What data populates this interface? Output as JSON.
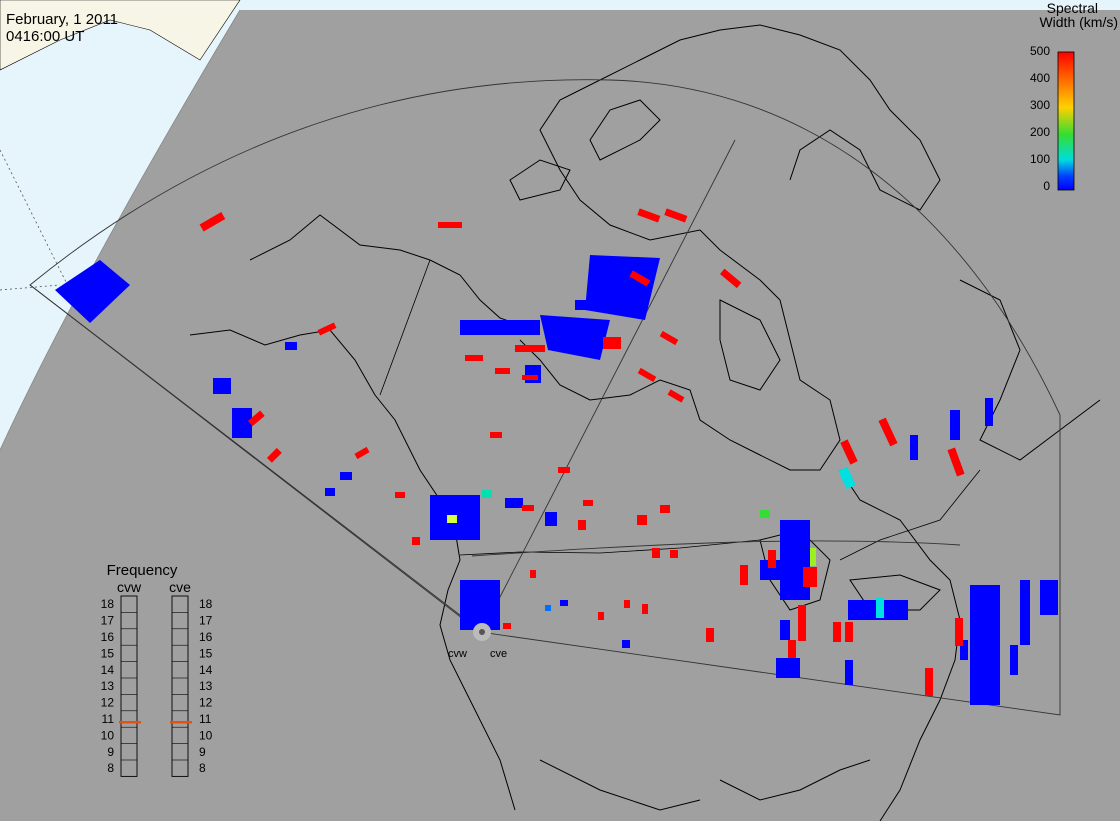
{
  "header": {
    "date": "February, 1 2011",
    "time": "0416:00 UT"
  },
  "colorbar": {
    "title_line1": "Spectral",
    "title_line2": "Width (km/s)",
    "ticks": [
      "500",
      "400",
      "300",
      "200",
      "100",
      "0"
    ],
    "colors": [
      "#ff0000",
      "#ff6a00",
      "#ffd000",
      "#33dd33",
      "#00dddd",
      "#0040ff",
      "#0000ff"
    ]
  },
  "frequency": {
    "title": "Frequency",
    "radars": [
      {
        "code": "cvw",
        "value_mhz": 10.8
      },
      {
        "code": "cve",
        "value_mhz": 10.8
      }
    ],
    "scale": [
      "18",
      "17",
      "16",
      "15",
      "14",
      "13",
      "12",
      "11",
      "10",
      "9",
      "8"
    ],
    "marker_color": "#e85010"
  },
  "radar_site": {
    "labels": [
      "cvw",
      "cve"
    ]
  },
  "colors": {
    "background": "#ffffff",
    "land_night": "#a0a0a0",
    "ocean_day": "#e6f4fb",
    "land_day": "#f7f5e6",
    "coast": "#000000",
    "fov": "#333333",
    "high_width": "#ff0000",
    "low_width": "#0000ff"
  }
}
